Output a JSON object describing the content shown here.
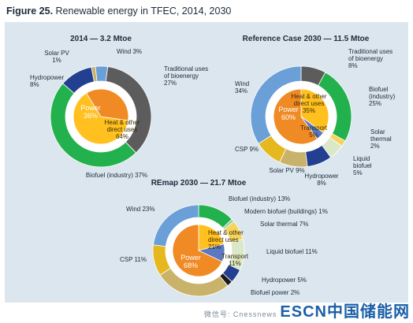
{
  "figure": {
    "number": "Figure 25.",
    "title": "Renewable energy in TFEC, 2014, 2030"
  },
  "colors": {
    "panel_bg": "#dbe6ee",
    "traditional": "#5c5c5c",
    "biofuel_industry": "#22b14c",
    "biofuel_buildings": "#8fd19e",
    "solar_thermal": "#f4d35e",
    "liquid_biofuel": "#dbe8c8",
    "hydropower": "#233f8f",
    "biofuel_power": "#1a1a1a",
    "solar_pv": "#c9b26a",
    "csp": "#e6b820",
    "wind": "#6a9fd8",
    "power": "#f08a24",
    "heat": "#ffc020",
    "transport": "#5a79c2"
  },
  "chart_data": [
    {
      "type": "pie",
      "title": "2014 — 3.2 Mtoe",
      "outer": [
        {
          "name": "Solar PV",
          "value": 1,
          "label": "Solar PV\n1%",
          "color_key": "solar_pv"
        },
        {
          "name": "Wind",
          "value": 3,
          "label": "Wind 3%",
          "color_key": "wind"
        },
        {
          "name": "Traditional uses of bioenergy",
          "value": 27,
          "label": "Traditional uses\nof bioenergy\n27%",
          "color_key": "traditional"
        },
        {
          "name": "Biofuel (industry)",
          "value": 37,
          "label": "Biofuel (industry) 37%",
          "color_key": "biofuel_industry"
        },
        {
          "name": "Hydropower",
          "value": 8,
          "label": "Hydropower\n8%",
          "color_key": "hydropower"
        }
      ],
      "inner": [
        {
          "name": "Heat & other direct uses",
          "value": 64,
          "label": "Heat & other\ndirect uses\n64%",
          "color_key": "heat"
        },
        {
          "name": "Power",
          "value": 36,
          "label": "Power\n36%",
          "color_key": "power"
        }
      ]
    },
    {
      "type": "pie",
      "title": "Reference Case 2030 — 11.5 Mtoe",
      "outer": [
        {
          "name": "Traditional uses of bioenergy",
          "value": 8,
          "label": "Traditional uses\nof bioenergy\n8%",
          "color_key": "traditional"
        },
        {
          "name": "Biofuel (industry)",
          "value": 25,
          "label": "Biofuel\n(industry)\n25%",
          "color_key": "biofuel_industry"
        },
        {
          "name": "Solar thermal",
          "value": 2,
          "label": "Solar\nthermal\n2%",
          "color_key": "solar_thermal"
        },
        {
          "name": "Liquid biofuel",
          "value": 5,
          "label": "Liquid\nbiofuel\n5%",
          "color_key": "liquid_biofuel"
        },
        {
          "name": "Hydropower",
          "value": 8,
          "label": "Hydropower\n8%",
          "color_key": "hydropower"
        },
        {
          "name": "Solar PV",
          "value": 9,
          "label": "Solar PV 9%",
          "color_key": "solar_pv"
        },
        {
          "name": "CSP",
          "value": 9,
          "label": "CSP 9%",
          "color_key": "csp"
        },
        {
          "name": "Wind",
          "value": 34,
          "label": "Wind\n34%",
          "color_key": "wind"
        }
      ],
      "inner": [
        {
          "name": "Heat & other direct uses",
          "value": 35,
          "label": "Heat & other\ndirect uses\n35%",
          "color_key": "heat"
        },
        {
          "name": "Transport",
          "value": 5,
          "label": "Transport\n5%",
          "color_key": "transport"
        },
        {
          "name": "Power",
          "value": 60,
          "label": "Power\n60%",
          "color_key": "power"
        }
      ]
    },
    {
      "type": "pie",
      "title": "REmap 2030 — 21.7 Mtoe",
      "outer": [
        {
          "name": "Biofuel (industry)",
          "value": 13,
          "label": "Biofuel (industry) 13%",
          "color_key": "biofuel_industry"
        },
        {
          "name": "Modern biofuel (buildings)",
          "value": 1,
          "label": "Modern biofuel (buildings) 1%",
          "color_key": "biofuel_buildings"
        },
        {
          "name": "Solar thermal",
          "value": 7,
          "label": "Solar thermal 7%",
          "color_key": "solar_thermal"
        },
        {
          "name": "Liquid biofuel",
          "value": 11,
          "label": "Liquid biofuel 11%",
          "color_key": "liquid_biofuel"
        },
        {
          "name": "Hydropower",
          "value": 5,
          "label": "Hydropower 5%",
          "color_key": "hydropower"
        },
        {
          "name": "Biofuel power",
          "value": 2,
          "label": "Biofuel power 2%",
          "color_key": "biofuel_power"
        },
        {
          "name": "Solar PV",
          "value": 27,
          "label": "",
          "color_key": "solar_pv"
        },
        {
          "name": "CSP",
          "value": 11,
          "label": "CSP 11%",
          "color_key": "csp"
        },
        {
          "name": "Wind",
          "value": 23,
          "label": "Wind 23%",
          "color_key": "wind"
        }
      ],
      "inner": [
        {
          "name": "Heat & other direct uses",
          "value": 21,
          "label": "Heat & other\ndirect uses\n21%",
          "color_key": "heat"
        },
        {
          "name": "Transport",
          "value": 11,
          "label": "Transport\n11%",
          "color_key": "transport"
        },
        {
          "name": "Power",
          "value": 68,
          "label": "Power\n68%",
          "color_key": "power"
        }
      ]
    }
  ],
  "watermark": {
    "prefix": "微信号: Cnessnews",
    "text": "ESCN中国储能网"
  }
}
